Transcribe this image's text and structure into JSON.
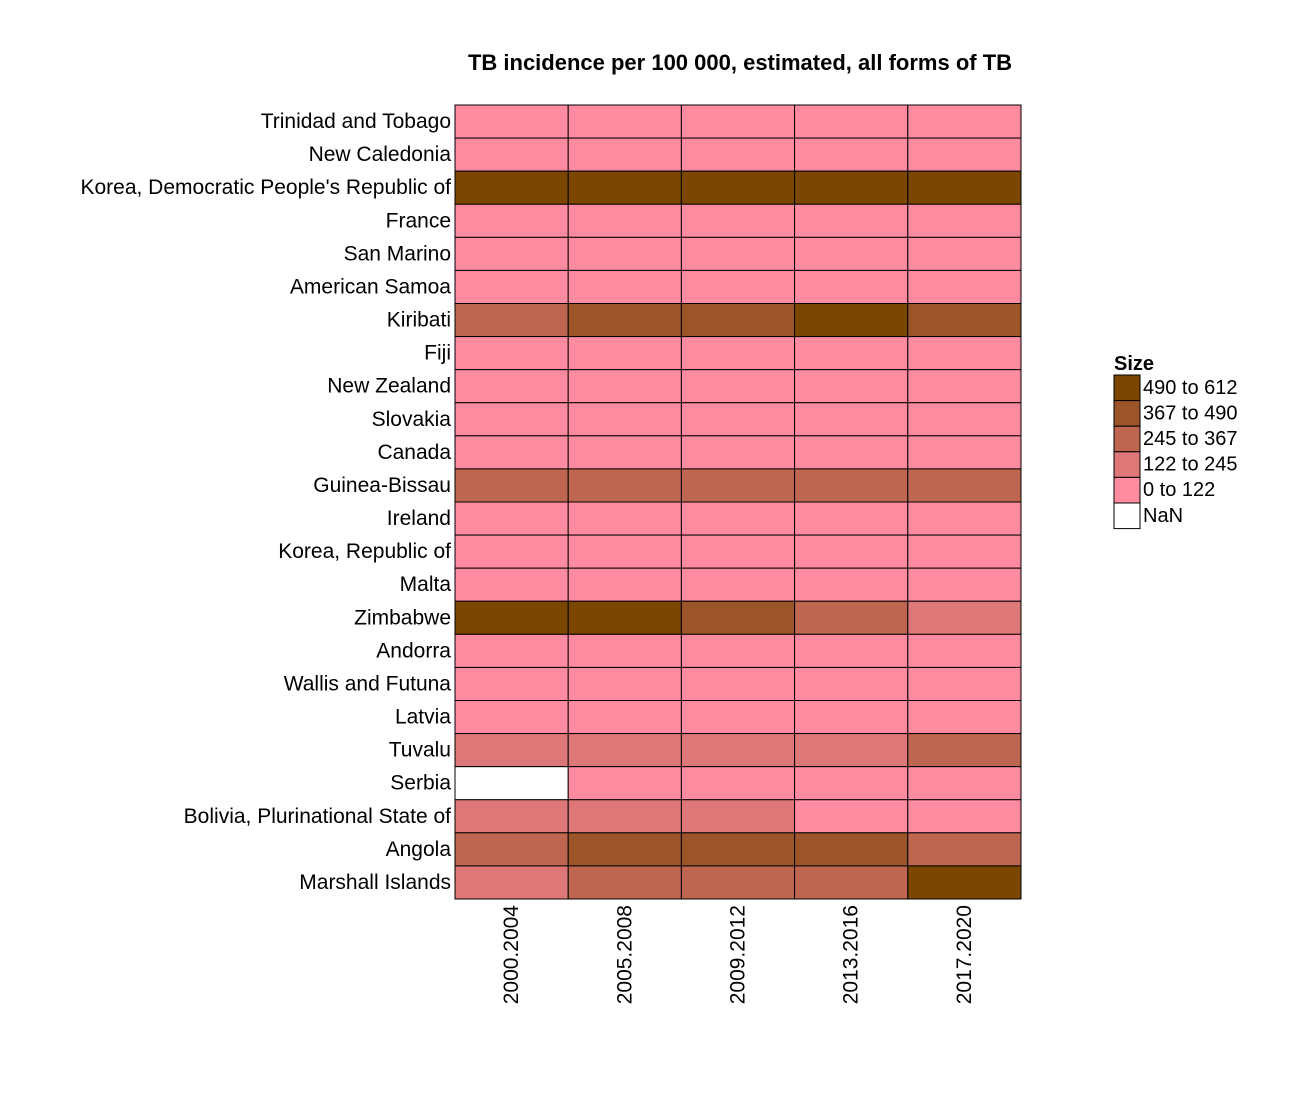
{
  "chart_data": {
    "type": "heatmap",
    "title": "TB incidence per 100 000, estimated, all forms of TB",
    "columns": [
      "2000.2004",
      "2005.2008",
      "2009.2012",
      "2013.2016",
      "2017.2020"
    ],
    "rows": [
      "Trinidad and Tobago",
      "New Caledonia",
      "Korea, Democratic People's Republic of",
      "France",
      "San Marino",
      "American Samoa",
      "Kiribati",
      "Fiji",
      "New Zealand",
      "Slovakia",
      "Canada",
      "Guinea-Bissau",
      "Ireland",
      "Korea, Republic of",
      "Malta",
      "Zimbabwe",
      "Andorra",
      "Wallis and Futuna",
      "Latvia",
      "Tuvalu",
      "Serbia",
      "Bolivia, Plurinational State of",
      "Angola",
      "Marshall Islands"
    ],
    "cells": [
      [
        "0 to 122",
        "0 to 122",
        "0 to 122",
        "0 to 122",
        "0 to 122"
      ],
      [
        "0 to 122",
        "0 to 122",
        "0 to 122",
        "0 to 122",
        "0 to 122"
      ],
      [
        "490 to 612",
        "490 to 612",
        "490 to 612",
        "490 to 612",
        "490 to 612"
      ],
      [
        "0 to 122",
        "0 to 122",
        "0 to 122",
        "0 to 122",
        "0 to 122"
      ],
      [
        "0 to 122",
        "0 to 122",
        "0 to 122",
        "0 to 122",
        "0 to 122"
      ],
      [
        "0 to 122",
        "0 to 122",
        "0 to 122",
        "0 to 122",
        "0 to 122"
      ],
      [
        "245 to 367",
        "367 to 490",
        "367 to 490",
        "490 to 612",
        "367 to 490"
      ],
      [
        "0 to 122",
        "0 to 122",
        "0 to 122",
        "0 to 122",
        "0 to 122"
      ],
      [
        "0 to 122",
        "0 to 122",
        "0 to 122",
        "0 to 122",
        "0 to 122"
      ],
      [
        "0 to 122",
        "0 to 122",
        "0 to 122",
        "0 to 122",
        "0 to 122"
      ],
      [
        "0 to 122",
        "0 to 122",
        "0 to 122",
        "0 to 122",
        "0 to 122"
      ],
      [
        "245 to 367",
        "245 to 367",
        "245 to 367",
        "245 to 367",
        "245 to 367"
      ],
      [
        "0 to 122",
        "0 to 122",
        "0 to 122",
        "0 to 122",
        "0 to 122"
      ],
      [
        "0 to 122",
        "0 to 122",
        "0 to 122",
        "0 to 122",
        "0 to 122"
      ],
      [
        "0 to 122",
        "0 to 122",
        "0 to 122",
        "0 to 122",
        "0 to 122"
      ],
      [
        "490 to 612",
        "490 to 612",
        "367 to 490",
        "245 to 367",
        "122 to 245"
      ],
      [
        "0 to 122",
        "0 to 122",
        "0 to 122",
        "0 to 122",
        "0 to 122"
      ],
      [
        "0 to 122",
        "0 to 122",
        "0 to 122",
        "0 to 122",
        "0 to 122"
      ],
      [
        "0 to 122",
        "0 to 122",
        "0 to 122",
        "0 to 122",
        "0 to 122"
      ],
      [
        "122 to 245",
        "122 to 245",
        "122 to 245",
        "122 to 245",
        "245 to 367"
      ],
      [
        "NaN",
        "0 to 122",
        "0 to 122",
        "0 to 122",
        "0 to 122"
      ],
      [
        "122 to 245",
        "122 to 245",
        "122 to 245",
        "0 to 122",
        "0 to 122"
      ],
      [
        "245 to 367",
        "367 to 490",
        "367 to 490",
        "367 to 490",
        "245 to 367"
      ],
      [
        "122 to 245",
        "245 to 367",
        "245 to 367",
        "245 to 367",
        "490 to 612"
      ]
    ],
    "legend": {
      "title": "Size",
      "placement": "right",
      "items": [
        {
          "label": "490 to 612",
          "color": "#7a4600"
        },
        {
          "label": "367 to 490",
          "color": "#9c5529"
        },
        {
          "label": "245 to 367",
          "color": "#bf6650"
        },
        {
          "label": "122 to 245",
          "color": "#de7878"
        },
        {
          "label": "0 to 122",
          "color": "#ff8ba0"
        },
        {
          "label": "NaN",
          "color": "#ffffff"
        }
      ]
    },
    "grid": true
  }
}
